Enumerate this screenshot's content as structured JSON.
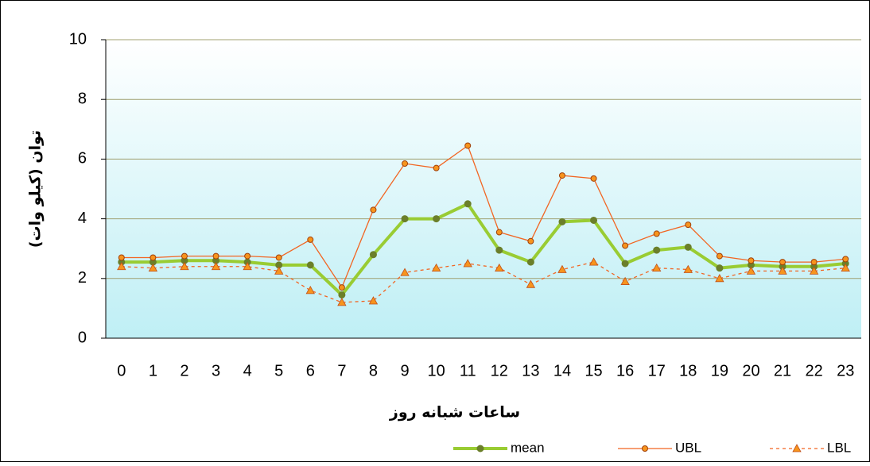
{
  "chart_data": {
    "type": "line",
    "x_label": "ساعات شبانه روز",
    "y_label": "توان (کیلو وات)",
    "categories": [
      "0",
      "1",
      "2",
      "3",
      "4",
      "5",
      "6",
      "7",
      "8",
      "9",
      "10",
      "11",
      "12",
      "13",
      "14",
      "15",
      "16",
      "17",
      "18",
      "19",
      "20",
      "21",
      "22",
      "23"
    ],
    "series": [
      {
        "name": "mean",
        "color": "#99cc33",
        "marker_color": "#6b7f2a",
        "marker": "circle",
        "dashed": false,
        "values": [
          2.55,
          2.55,
          2.6,
          2.6,
          2.55,
          2.45,
          2.45,
          1.45,
          2.8,
          4.0,
          4.0,
          4.5,
          2.95,
          2.55,
          3.9,
          3.95,
          2.5,
          2.95,
          3.05,
          2.35,
          2.45,
          2.4,
          2.4,
          2.5
        ]
      },
      {
        "name": "UBL",
        "color": "#f26522",
        "marker_color": "#f7941d",
        "marker": "circle",
        "dashed": false,
        "values": [
          2.7,
          2.7,
          2.75,
          2.75,
          2.75,
          2.7,
          3.3,
          1.7,
          4.3,
          5.85,
          5.7,
          6.45,
          3.55,
          3.25,
          5.45,
          5.35,
          3.1,
          3.5,
          3.8,
          2.75,
          2.6,
          2.55,
          2.55,
          2.65
        ]
      },
      {
        "name": "LBL",
        "color": "#f26522",
        "marker_color": "#f7941d",
        "marker": "triangle",
        "dashed": true,
        "values": [
          2.4,
          2.35,
          2.4,
          2.4,
          2.4,
          2.25,
          1.6,
          1.2,
          1.25,
          2.2,
          2.35,
          2.5,
          2.35,
          1.8,
          2.3,
          2.55,
          1.9,
          2.35,
          2.3,
          2.0,
          2.25,
          2.25,
          2.25,
          2.35
        ]
      }
    ],
    "ylim": [
      0,
      10
    ],
    "yticks": [
      0,
      2,
      4,
      6,
      8,
      10
    ],
    "grid": true,
    "legend": "bottom"
  }
}
